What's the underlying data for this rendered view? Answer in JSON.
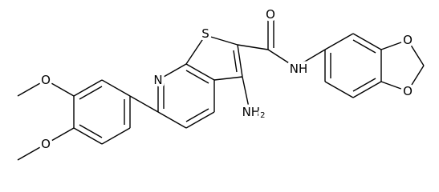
{
  "atoms": {
    "carbonyl_oxygen": "O",
    "thiophene_sulfur": "S",
    "pyridine_nitrogen": "N",
    "amide_nitrogen": "NH",
    "amino_group": {
      "label": "NH",
      "subscript": "2"
    },
    "dioxole_oxygen_top": "O",
    "dioxole_oxygen_bottom": "O",
    "methoxy_oxygen_top": "O",
    "methoxy_oxygen_bottom": "O"
  }
}
